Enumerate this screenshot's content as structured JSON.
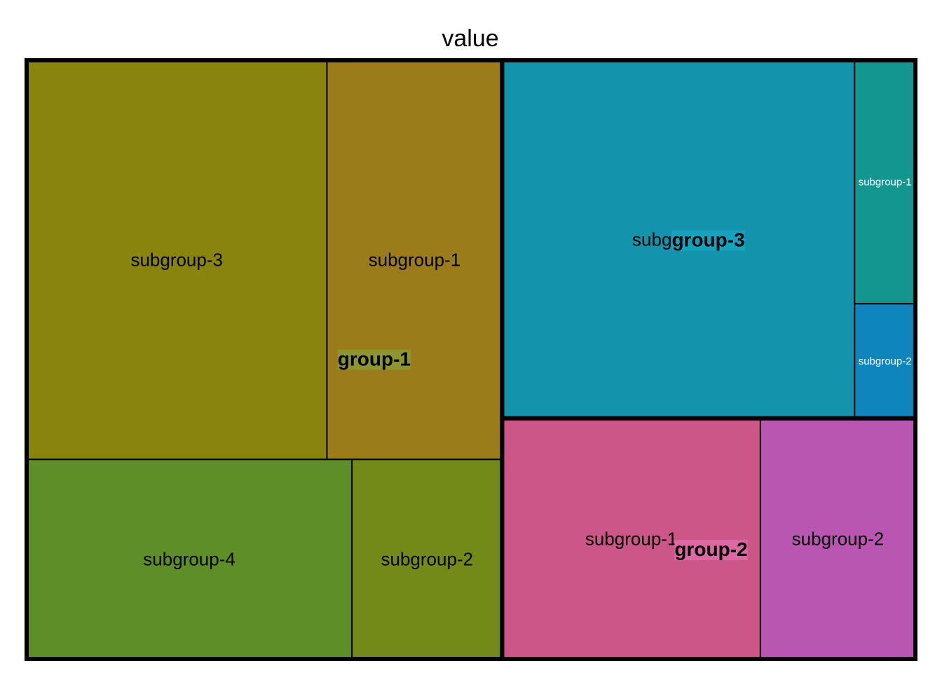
{
  "chart_data": {
    "type": "treemap",
    "title": "value",
    "groups": [
      {
        "name": "group-1",
        "label_bg": "#8e9530",
        "subgroups": [
          {
            "name": "subgroup-3",
            "value": 24,
            "color": "#88840e"
          },
          {
            "name": "subgroup-1",
            "value": 14,
            "color": "#9b7c1a"
          },
          {
            "name": "subgroup-4",
            "value": 13,
            "color": "#5e8e27"
          },
          {
            "name": "subgroup-2",
            "value": 6,
            "color": "#738918"
          }
        ]
      },
      {
        "name": "group-3",
        "label_bg": "#14a4c0",
        "subgroups": [
          {
            "name": "subgroup-3",
            "value": 29,
            "color": "#1493ad"
          },
          {
            "name": "subgroup-1",
            "value": 3.4,
            "color": "#13968f"
          },
          {
            "name": "subgroup-2",
            "value": 1.6,
            "color": "#0f85bd"
          }
        ]
      },
      {
        "name": "group-2",
        "label_bg": "#dc69a2",
        "subgroups": [
          {
            "name": "subgroup-1",
            "value": 12.5,
            "color": "#cb5687"
          },
          {
            "name": "subgroup-2",
            "value": 7.5,
            "color": "#b956b1"
          }
        ]
      }
    ]
  }
}
